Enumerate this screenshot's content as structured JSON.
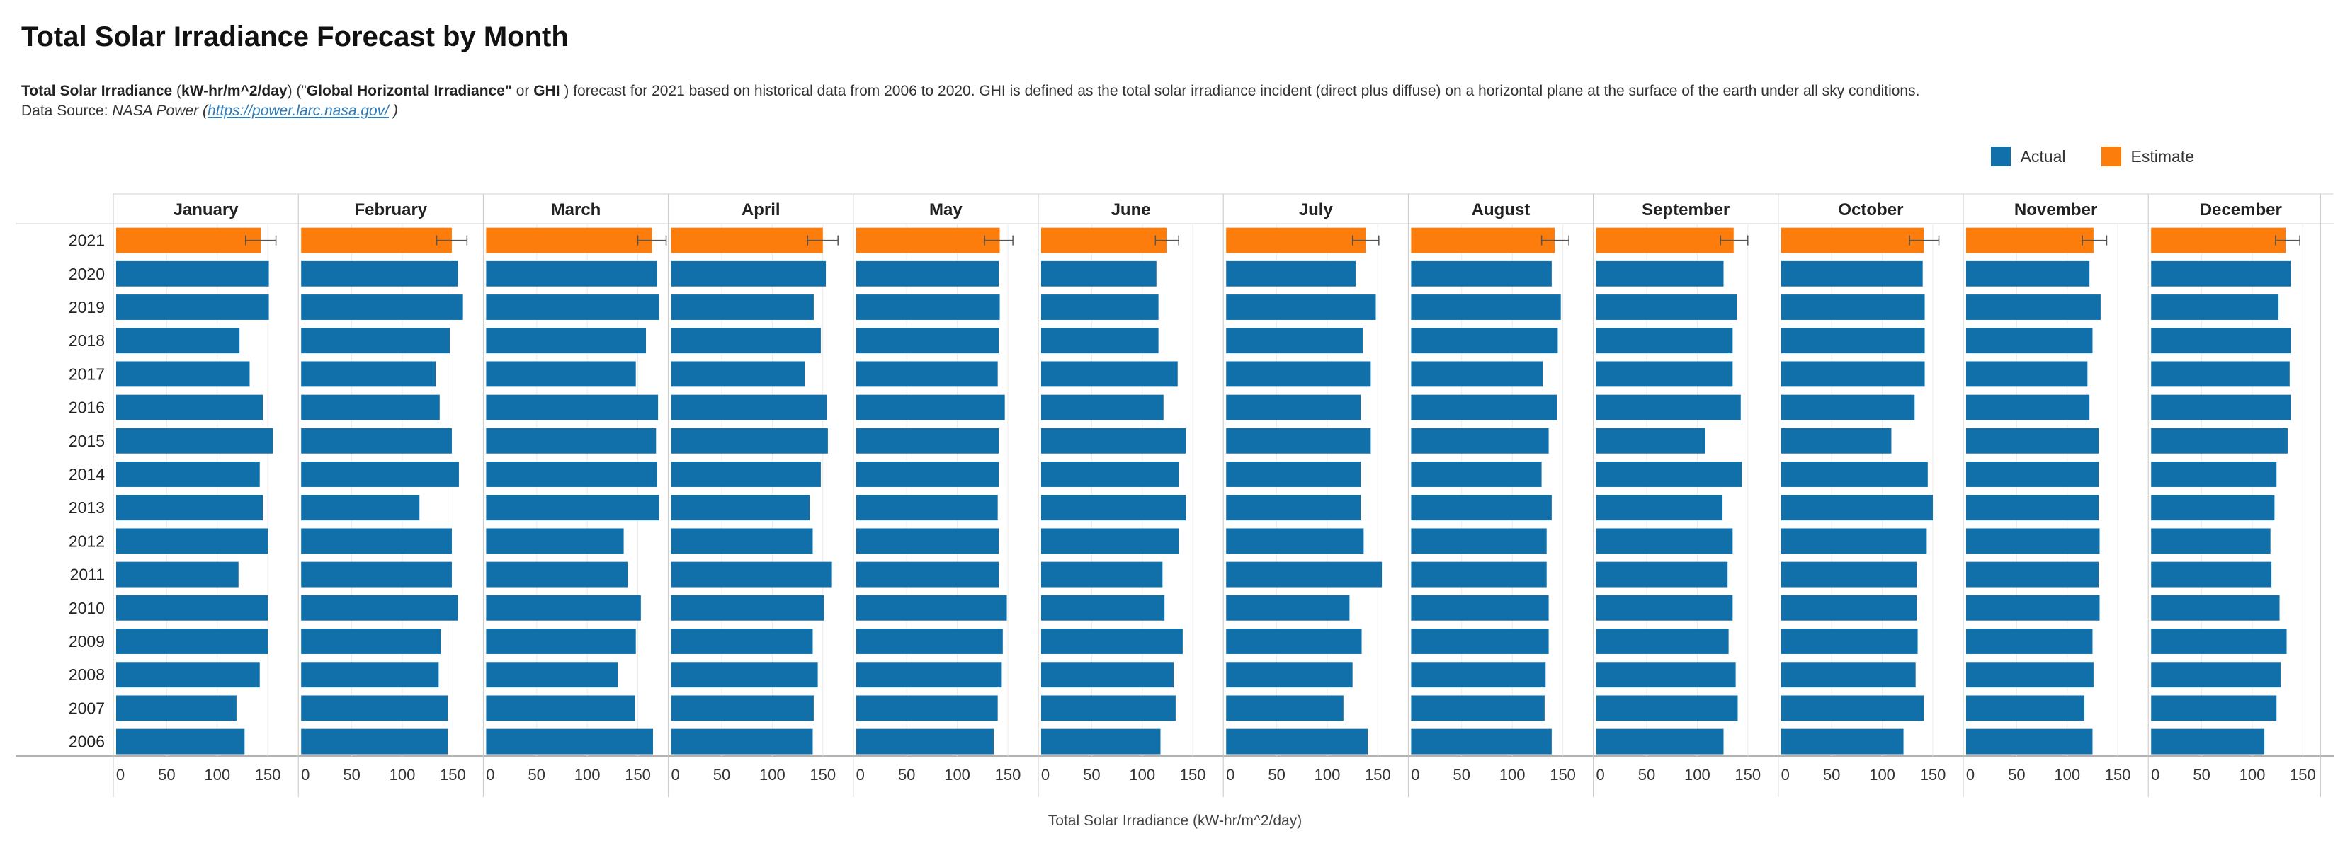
{
  "title": "Total Solar Irradiance Forecast by Month",
  "description": {
    "part1_bold": "Total Solar Irradiance",
    "part2": " (",
    "part3_bold": "kW-hr/m^2/day",
    "part4": ") (\"",
    "part5_bold": "Global Horizontal Irradiance\"",
    "part6": " or ",
    "part7_bold": "GHI",
    "part8": " ) forecast for 2021 based on historical data from 2006 to 2020. GHI is defined as the total solar irradiance incident (direct plus diffuse) on a horizontal plane at the surface of the earth under all sky conditions.",
    "source_label": "Data Source: ",
    "source_name": "NASA Power",
    "source_open": " (",
    "source_link": "https://power.larc.nasa.gov/",
    "source_close": " )"
  },
  "legend": [
    {
      "label": "Actual",
      "color": "#1170aa"
    },
    {
      "label": "Estimate",
      "color": "#fc7d0b"
    }
  ],
  "chart_data": {
    "type": "bar",
    "orientation": "horizontal",
    "facets": [
      "January",
      "February",
      "March",
      "April",
      "May",
      "June",
      "July",
      "August",
      "September",
      "October",
      "November",
      "December"
    ],
    "categories": [
      "2021",
      "2020",
      "2019",
      "2018",
      "2017",
      "2016",
      "2015",
      "2014",
      "2013",
      "2012",
      "2011",
      "2010",
      "2009",
      "2008",
      "2007",
      "2006"
    ],
    "xlabel": "Total Solar Irradiance (kW-hr/m^2/day)",
    "xticks": [
      0,
      50,
      100,
      150
    ],
    "xlim": [
      0,
      180
    ],
    "colors": {
      "Actual": "#1170aa",
      "Estimate": "#fc7d0b"
    },
    "estimate_year": "2021",
    "series": [
      {
        "month": "January",
        "values": [
          143,
          151,
          151,
          122,
          132,
          145,
          155,
          142,
          145,
          150,
          121,
          150,
          150,
          142,
          119,
          127
        ],
        "error": [
          128,
          158
        ]
      },
      {
        "month": "February",
        "values": [
          149,
          155,
          160,
          147,
          133,
          137,
          149,
          156,
          117,
          149,
          149,
          155,
          138,
          136,
          145,
          145
        ],
        "error": [
          134,
          164
        ]
      },
      {
        "month": "March",
        "values": [
          164,
          169,
          171,
          158,
          148,
          170,
          168,
          169,
          171,
          136,
          140,
          153,
          148,
          130,
          147,
          165
        ],
        "error": [
          150,
          178
        ]
      },
      {
        "month": "April",
        "values": [
          150,
          153,
          141,
          148,
          132,
          154,
          155,
          148,
          137,
          140,
          159,
          151,
          140,
          145,
          141,
          140
        ],
        "error": [
          135,
          165
        ]
      },
      {
        "month": "May",
        "values": [
          142,
          141,
          142,
          141,
          140,
          147,
          141,
          141,
          140,
          141,
          141,
          149,
          145,
          144,
          140,
          136
        ],
        "error": [
          127,
          155
        ]
      },
      {
        "month": "June",
        "values": [
          124,
          114,
          116,
          116,
          135,
          121,
          143,
          136,
          143,
          136,
          120,
          122,
          140,
          131,
          133,
          118
        ],
        "error": [
          113,
          136
        ]
      },
      {
        "month": "July",
        "values": [
          138,
          128,
          148,
          135,
          143,
          133,
          143,
          133,
          133,
          136,
          154,
          122,
          134,
          125,
          116,
          140
        ],
        "error": [
          125,
          151
        ]
      },
      {
        "month": "August",
        "values": [
          142,
          139,
          148,
          145,
          130,
          144,
          136,
          129,
          139,
          134,
          134,
          136,
          136,
          133,
          132,
          139
        ],
        "error": [
          129,
          156
        ]
      },
      {
        "month": "September",
        "values": [
          136,
          126,
          139,
          135,
          135,
          143,
          108,
          144,
          125,
          135,
          130,
          135,
          131,
          138,
          140,
          126
        ],
        "error": [
          123,
          150
        ]
      },
      {
        "month": "October",
        "values": [
          141,
          140,
          142,
          142,
          142,
          132,
          109,
          145,
          150,
          144,
          134,
          134,
          135,
          133,
          141,
          121
        ],
        "error": [
          127,
          156
        ]
      },
      {
        "month": "November",
        "values": [
          126,
          122,
          133,
          125,
          120,
          122,
          131,
          131,
          131,
          132,
          131,
          132,
          125,
          126,
          117,
          125
        ],
        "error": [
          115,
          139
        ]
      },
      {
        "month": "December",
        "values": [
          133,
          138,
          126,
          138,
          137,
          138,
          135,
          124,
          122,
          118,
          119,
          127,
          134,
          128,
          124,
          112
        ],
        "error": [
          123,
          147
        ]
      }
    ]
  }
}
